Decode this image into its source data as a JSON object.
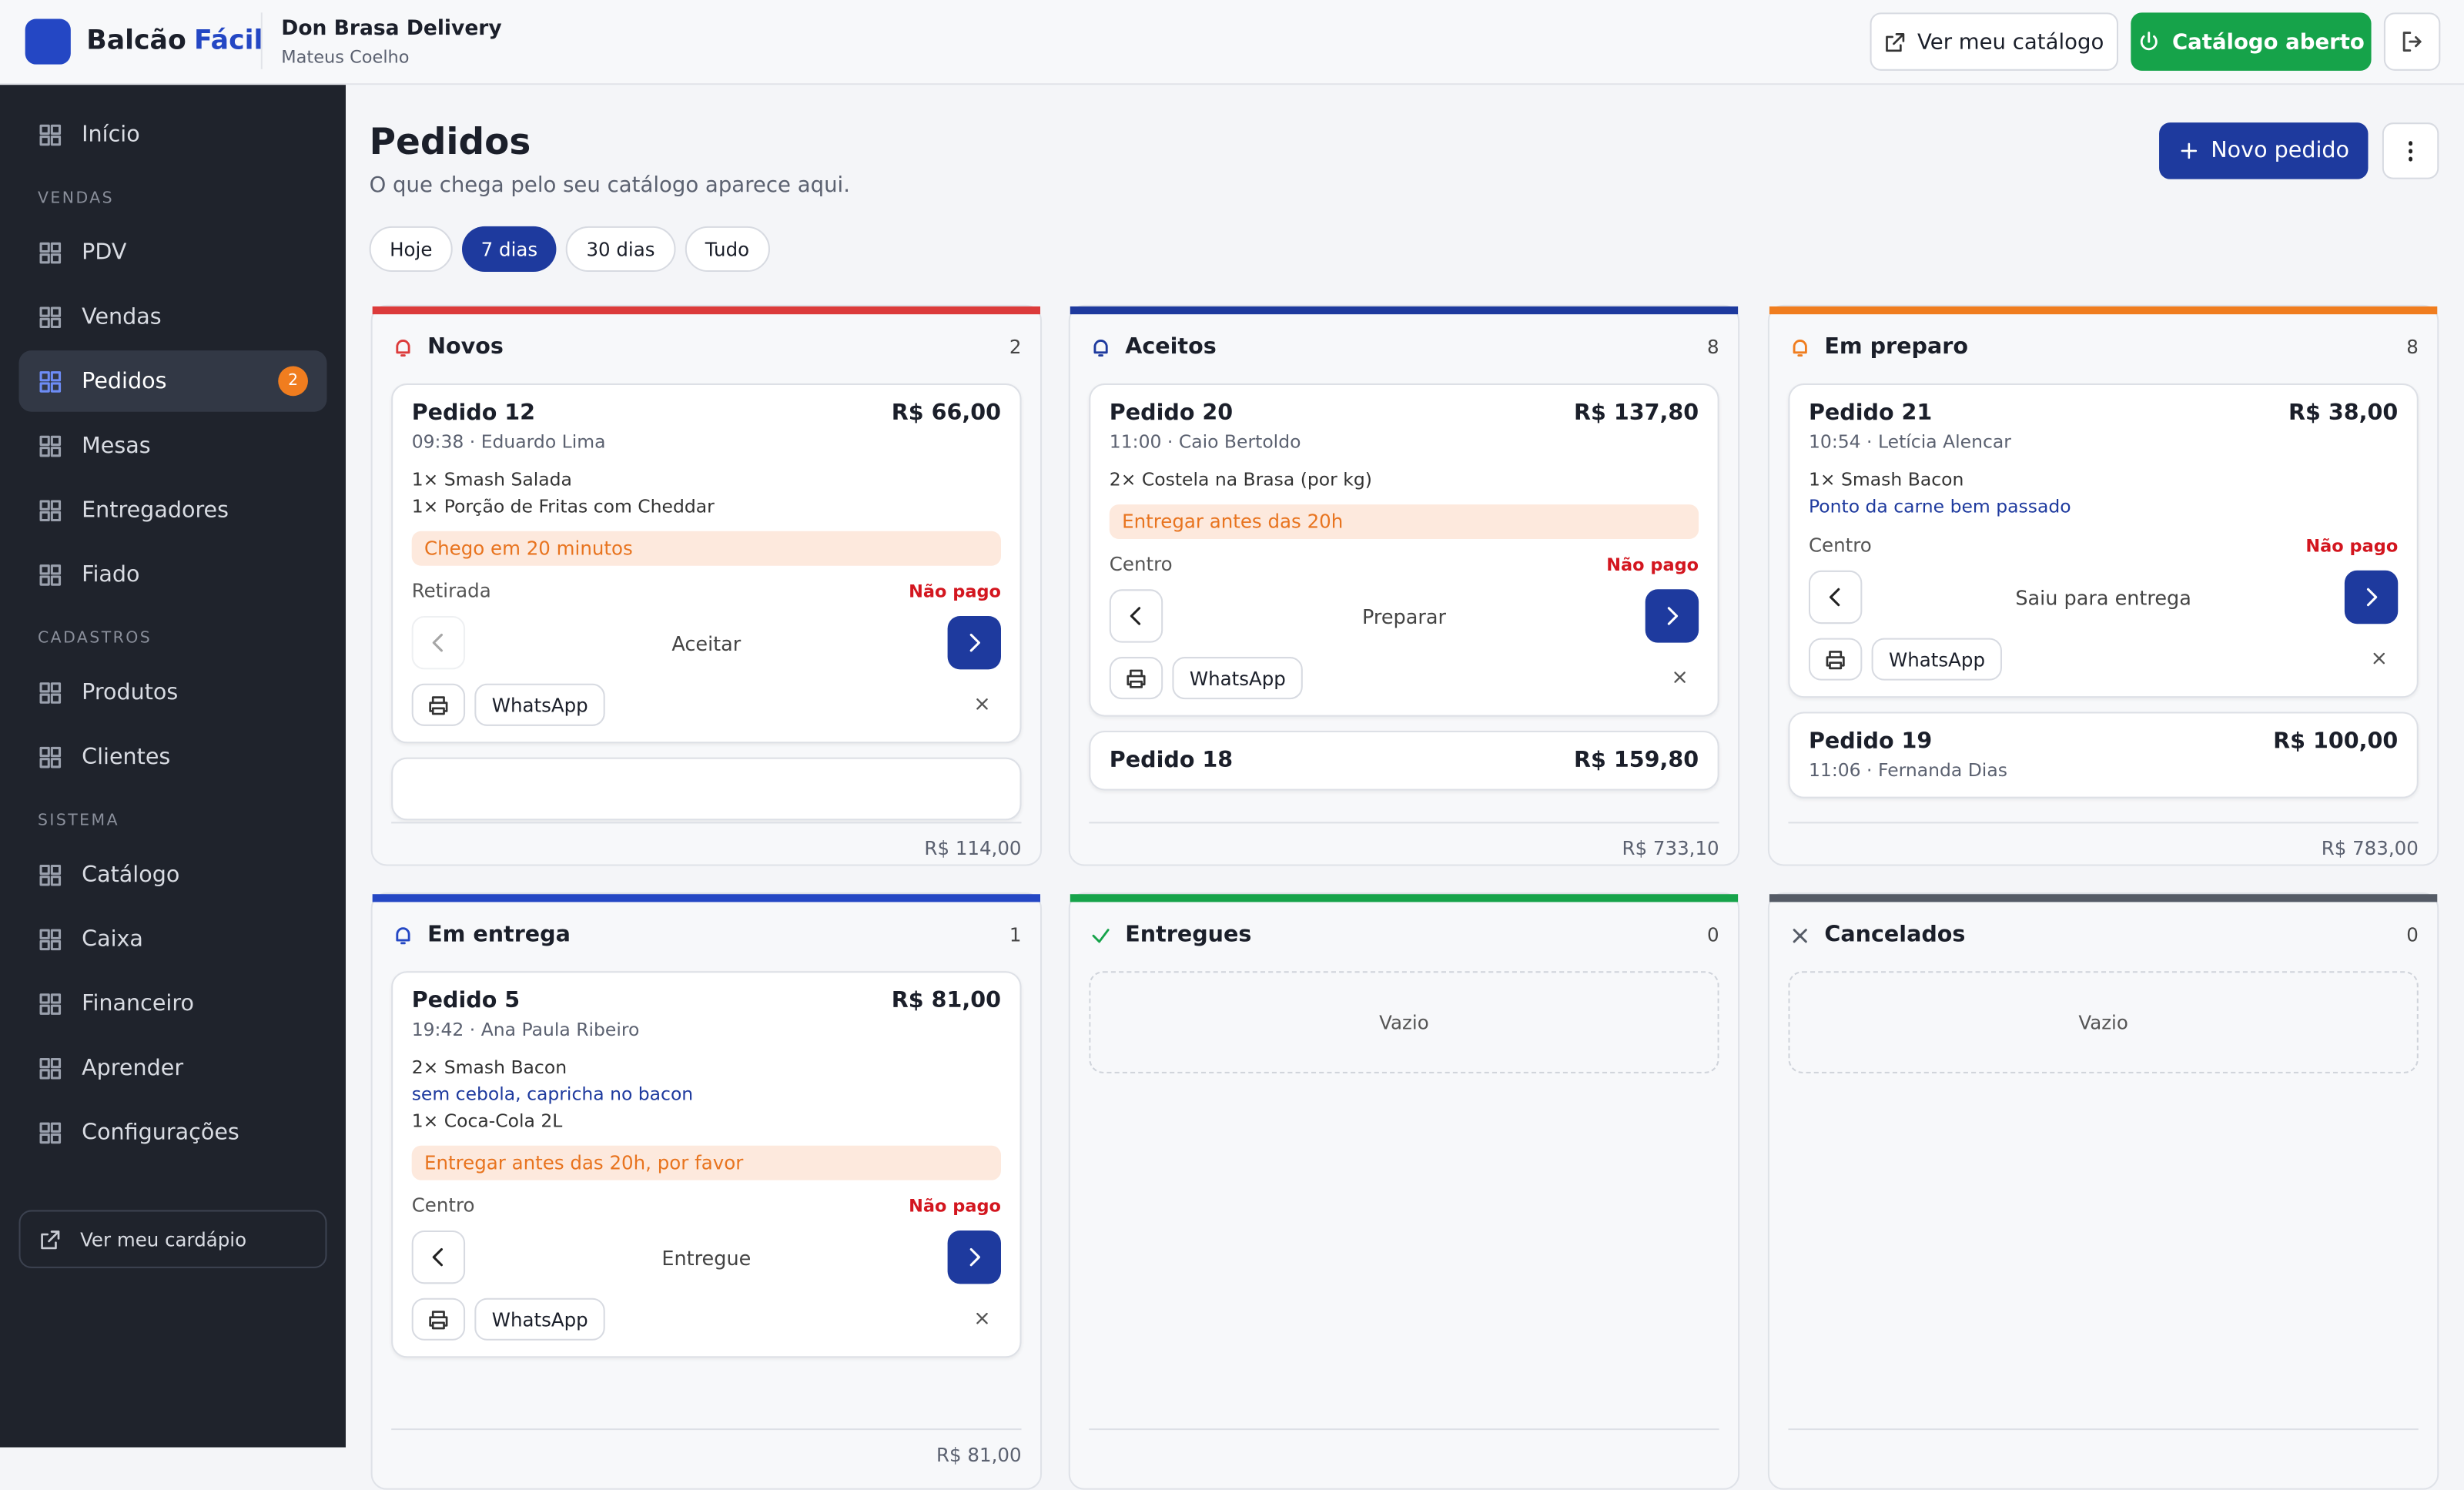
{
  "header": {
    "brand_a": "Balcão",
    "brand_b": "Fácil",
    "store": "Don Brasa Delivery",
    "user": "Mateus Coelho",
    "catalog_button": "Ver meu catálogo",
    "open_button": "Catálogo aberto"
  },
  "sidebar": {
    "groups": [
      {
        "items": [
          {
            "label": "Início"
          }
        ]
      },
      {
        "title": "VENDAS",
        "items": [
          {
            "label": "PDV"
          },
          {
            "label": "Vendas"
          },
          {
            "label": "Pedidos",
            "badge": "2",
            "active": true
          },
          {
            "label": "Mesas"
          },
          {
            "label": "Entregadores"
          },
          {
            "label": "Fiado"
          }
        ]
      },
      {
        "title": "CADASTROS",
        "items": [
          {
            "label": "Produtos"
          },
          {
            "label": "Clientes"
          }
        ]
      },
      {
        "title": "SISTEMA",
        "items": [
          {
            "label": "Catálogo"
          },
          {
            "label": "Caixa"
          },
          {
            "label": "Financeiro"
          },
          {
            "label": "Aprender"
          },
          {
            "label": "Configurações"
          }
        ]
      }
    ],
    "footer_button": "Ver meu cardápio"
  },
  "page": {
    "title": "Pedidos",
    "subtitle": "O que chega pelo seu catálogo aparece aqui.",
    "new_button": "Novo pedido",
    "filters": [
      "Hoje",
      "7 dias",
      "30 dias",
      "Tudo"
    ],
    "active_filter": 1
  },
  "columns": [
    {
      "name": "Novos",
      "count": "2",
      "color": "#dc3b3b",
      "total": "R$ 114,00",
      "more": true,
      "cards": [
        {
          "title": "Pedido 12",
          "price": "R$ 66,00",
          "meta": "09:38 · Eduardo Lima",
          "items": [
            {
              "text": "1× Smash Salada"
            },
            {
              "text": "1× Porção de Fritas com Cheddar"
            }
          ],
          "tag": "Chego em 20 minutos",
          "place": "Retirada",
          "payment": "Não pago",
          "action": "Aceitar",
          "whatsapp": "WhatsApp",
          "prev_disabled": true
        }
      ]
    },
    {
      "name": "Aceitos",
      "count": "8",
      "color": "#1e3a9e",
      "total": "R$ 733,10",
      "cards": [
        {
          "title": "Pedido 20",
          "price": "R$ 137,80",
          "meta": "11:00 · Caio Bertoldo",
          "items": [
            {
              "text": "2× Costela na Brasa (por kg)"
            }
          ],
          "tag": "Entregar antes das 20h",
          "place": "Centro",
          "payment": "Não pago",
          "action": "Preparar",
          "whatsapp": "WhatsApp"
        },
        {
          "title": "Pedido 18",
          "price": "R$ 159,80"
        }
      ]
    },
    {
      "name": "Em preparo",
      "count": "8",
      "color": "#f07d1f",
      "total": "R$ 783,00",
      "cards": [
        {
          "title": "Pedido 21",
          "price": "R$ 38,00",
          "meta": "10:54 · Letícia Alencar",
          "items": [
            {
              "text": "1× Smash Bacon",
              "note": "Ponto da carne bem passado"
            }
          ],
          "place": "Centro",
          "payment": "Não pago",
          "action": "Saiu para entrega",
          "whatsapp": "WhatsApp"
        },
        {
          "title": "Pedido 19",
          "price": "R$ 100,00",
          "meta": "11:06 · Fernanda Dias"
        }
      ]
    },
    {
      "name": "Em entrega",
      "count": "1",
      "color": "#2447c4",
      "total": "R$ 81,00",
      "cards": [
        {
          "title": "Pedido 5",
          "price": "R$ 81,00",
          "meta": "19:42 · Ana Paula Ribeiro",
          "items": [
            {
              "text": "2× Smash Bacon",
              "note": "sem cebola, capricha no bacon"
            },
            {
              "text": "1× Coca-Cola 2L"
            }
          ],
          "tag": "Entregar antes das 20h, por favor",
          "place": "Centro",
          "payment": "Não pago",
          "action": "Entregue",
          "whatsapp": "WhatsApp"
        }
      ]
    },
    {
      "name": "Entregues",
      "count": "0",
      "color": "#16a34a",
      "empty": "Vazio",
      "cards": []
    },
    {
      "name": "Cancelados",
      "count": "0",
      "color": "#555b66",
      "empty": "Vazio",
      "cards": []
    }
  ]
}
